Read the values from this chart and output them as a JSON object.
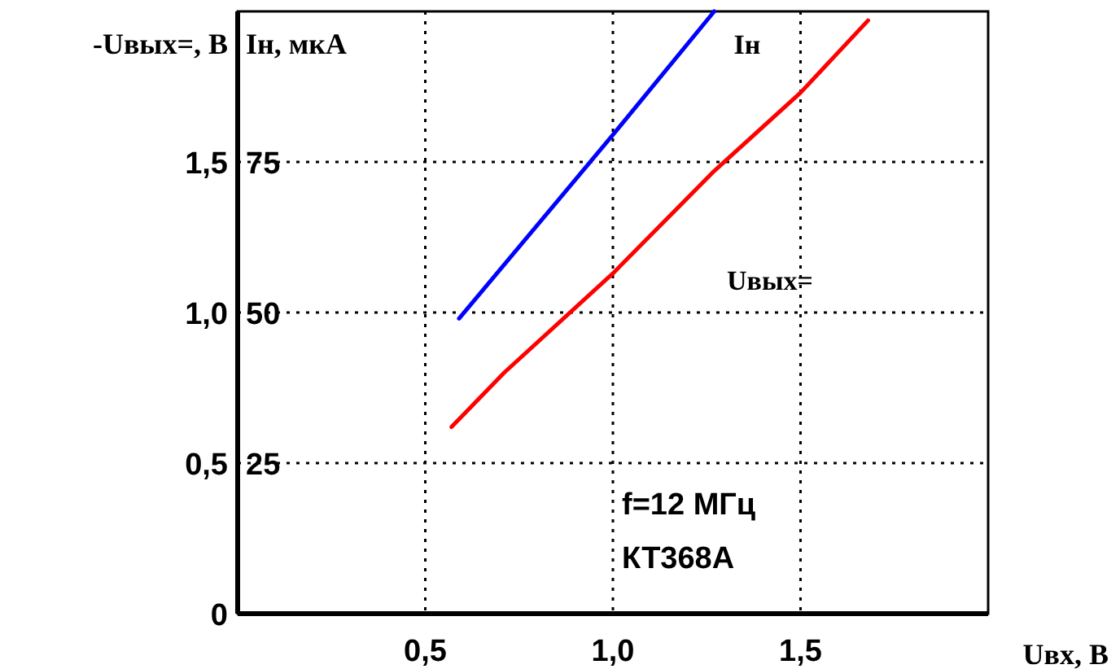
{
  "chart_data": {
    "type": "line",
    "xlabel": "Uвх, В",
    "ylabel": "-Uвых=, В",
    "y2label": "Iн, мкА",
    "xlim": [
      0,
      2
    ],
    "xticks": [
      {
        "value": 0.5,
        "label": "0,5"
      },
      {
        "value": 1,
        "label": "1,0"
      },
      {
        "value": 1.5,
        "label": "1,5"
      }
    ],
    "ylim": [
      0,
      2
    ],
    "yticks": [
      0,
      {
        "value": 0.5,
        "label": "0,5"
      },
      {
        "value": 1,
        "label": "1,0"
      },
      {
        "value": 1.5,
        "label": "1,5"
      }
    ],
    "y2lim": [
      0,
      100
    ],
    "y2ticks": [
      25,
      50,
      75
    ],
    "grid": true,
    "line_style": "solid",
    "series": [
      {
        "name": "Iн",
        "color": "#0000ff",
        "axis": "y2",
        "x": [
          0.59,
          1.0,
          1.27
        ],
        "values": [
          49,
          79.5,
          100
        ]
      },
      {
        "name": "Uвых=",
        "color": "#ff0000",
        "x": [
          0.57,
          0.71,
          1.0,
          1.27,
          1.5,
          1.68
        ],
        "values": [
          0.62,
          0.8,
          1.13,
          1.47,
          1.73,
          1.97
        ]
      }
    ],
    "annotations": [
      "f=12 МГц",
      "КТ368А"
    ]
  }
}
